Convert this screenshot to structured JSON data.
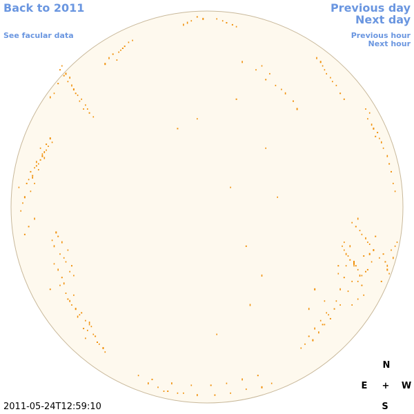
{
  "navigation": {
    "back_label": "Back to 2011",
    "facular_label": "See facular data",
    "previous_day_label": "Previous day",
    "next_day_label": "Next day",
    "previous_hour_label": "Previous hour",
    "next_hour_label": "Next hour"
  },
  "timestamp": "2011-05-24T12:59:10",
  "compass": {
    "north": "N",
    "south": "S",
    "east": "E",
    "west": "W",
    "center": "+"
  },
  "colors": {
    "link": "#6a96e0",
    "disc_fill": "#fef9ee",
    "disc_outline": "#c8b89a",
    "facula": "#f0900a"
  },
  "chart_data": {
    "type": "scatter",
    "x": [
      -0.68,
      -0.71,
      -0.66,
      -0.73,
      -0.69,
      -0.64,
      -0.75,
      -0.62,
      -0.7,
      -0.67,
      -0.74,
      -0.63,
      -0.72,
      -0.65,
      -0.78,
      -0.6,
      -0.8,
      -0.58,
      -0.76,
      -0.61,
      -0.83,
      -0.85,
      -0.81,
      -0.88,
      -0.84,
      -0.86,
      -0.82,
      -0.9,
      -0.87,
      -0.79,
      -0.89,
      -0.84,
      -0.83,
      -0.87,
      -0.85,
      -0.91,
      -0.8,
      -0.86,
      -0.88,
      -0.82,
      -0.74,
      -0.71,
      -0.76,
      -0.73,
      -0.78,
      -0.69,
      -0.75,
      -0.72,
      -0.77,
      -0.7,
      -0.79,
      -0.74,
      -0.73,
      -0.68,
      -0.8,
      -0.72,
      -0.76,
      -0.71,
      -0.75,
      -0.78,
      -0.93,
      -0.9,
      -0.95,
      -0.92,
      -0.88,
      -0.94,
      -0.91,
      -0.96,
      -0.89,
      -0.93,
      -0.65,
      -0.62,
      -0.67,
      -0.6,
      -0.69,
      -0.63,
      -0.66,
      -0.58,
      -0.64,
      -0.61,
      -0.7,
      -0.57,
      -0.55,
      -0.59,
      -0.53,
      -0.68,
      -0.62,
      -0.56,
      -0.6,
      -0.52,
      -0.48,
      -0.44,
      -0.5,
      -0.42,
      -0.46,
      -0.4,
      -0.52,
      -0.38,
      -0.45,
      -0.43,
      -0.3,
      -0.25,
      -0.2,
      -0.12,
      -0.05,
      0.04,
      0.12,
      0.2,
      0.28,
      0.33,
      -0.35,
      -0.28,
      -0.18,
      -0.08,
      0.02,
      0.1,
      0.18,
      0.26,
      -0.22,
      -0.15,
      -0.02,
      -0.08,
      0.05,
      0.1,
      -0.12,
      0.15,
      -0.05,
      0.08,
      -0.1,
      0.13,
      0.6,
      0.63,
      0.58,
      0.66,
      0.61,
      0.68,
      0.56,
      0.64,
      0.7,
      0.59,
      0.84,
      0.87,
      0.82,
      0.88,
      0.85,
      0.9,
      0.83,
      0.86,
      0.89,
      0.81,
      0.93,
      0.95,
      0.92,
      0.94,
      0.96,
      0.72,
      0.75,
      0.7,
      0.77,
      0.73,
      0.78,
      0.69,
      0.76,
      0.74,
      0.71,
      0.79,
      0.67,
      0.8,
      0.75,
      0.72,
      0.77,
      0.7,
      0.68,
      0.74,
      0.81,
      0.78,
      0.81,
      0.76,
      0.83,
      0.79,
      0.85,
      0.74,
      0.82,
      0.8,
      0.77,
      0.84,
      0.86,
      0.75,
      0.73,
      0.82,
      0.88,
      0.79,
      0.83,
      0.71,
      0.77,
      0.9,
      0.92,
      0.94,
      0.91,
      0.93,
      0.95,
      0.89,
      0.96,
      0.97,
      0.92,
      0.62,
      0.58,
      0.65,
      0.55,
      0.6,
      0.52,
      0.68,
      0.57,
      0.63,
      0.5,
      0.66,
      0.54,
      0.61,
      0.48,
      0.59,
      0.4,
      0.35,
      0.3,
      0.25,
      0.18,
      0.44,
      0.38,
      0.32,
      0.46,
      0.28,
      0.12,
      0.2,
      0.28,
      0.36,
      -0.15,
      0.3,
      0.22,
      0.15,
      0.05,
      -0.05,
      0.55,
      0.7,
      0.6,
      0.67,
      0.52
    ],
    "y": [
      0.6,
      0.64,
      0.57,
      0.67,
      0.62,
      0.55,
      0.7,
      0.52,
      0.66,
      0.58,
      0.72,
      0.5,
      0.68,
      0.54,
      0.58,
      0.48,
      0.56,
      0.46,
      0.63,
      0.5,
      0.28,
      0.24,
      0.31,
      0.2,
      0.26,
      0.22,
      0.29,
      0.18,
      0.23,
      0.33,
      0.16,
      0.27,
      0.25,
      0.21,
      0.3,
      0.14,
      0.35,
      0.19,
      0.12,
      0.32,
      -0.18,
      -0.22,
      -0.15,
      -0.26,
      -0.2,
      -0.3,
      -0.24,
      -0.28,
      -0.13,
      -0.33,
      -0.17,
      -0.36,
      -0.39,
      -0.35,
      -0.42,
      -0.44,
      -0.32,
      -0.47,
      -0.4,
      -0.29,
      0.05,
      0.08,
      -0.02,
      0.12,
      -0.06,
      0.02,
      -0.1,
      0.1,
      0.15,
      -0.14,
      -0.55,
      -0.58,
      -0.52,
      -0.6,
      -0.5,
      -0.62,
      -0.56,
      -0.65,
      -0.54,
      -0.63,
      -0.48,
      -0.66,
      -0.7,
      -0.61,
      -0.72,
      -0.45,
      -0.67,
      -0.69,
      -0.59,
      -0.74,
      0.78,
      0.8,
      0.76,
      0.82,
      0.75,
      0.84,
      0.73,
      0.85,
      0.79,
      0.81,
      -0.9,
      -0.92,
      -0.94,
      -0.95,
      -0.96,
      -0.96,
      -0.95,
      -0.93,
      -0.92,
      -0.9,
      -0.86,
      -0.88,
      -0.9,
      -0.91,
      -0.91,
      -0.9,
      -0.88,
      -0.86,
      -0.94,
      -0.95,
      0.96,
      0.95,
      0.96,
      0.94,
      0.93,
      0.92,
      0.97,
      0.95,
      0.94,
      0.93,
      0.7,
      0.66,
      0.74,
      0.62,
      0.68,
      0.58,
      0.76,
      0.64,
      0.55,
      0.72,
      0.42,
      0.38,
      0.45,
      0.35,
      0.4,
      0.3,
      0.48,
      0.36,
      0.33,
      0.5,
      0.22,
      0.12,
      0.26,
      0.18,
      0.08,
      -0.25,
      -0.28,
      -0.22,
      -0.32,
      -0.27,
      -0.35,
      -0.2,
      -0.3,
      -0.38,
      -0.24,
      -0.4,
      -0.34,
      -0.45,
      -0.29,
      -0.43,
      -0.47,
      -0.36,
      -0.42,
      -0.5,
      -0.33,
      -0.12,
      -0.16,
      -0.1,
      -0.19,
      -0.14,
      -0.22,
      -0.08,
      -0.18,
      -0.25,
      -0.06,
      -0.28,
      -0.15,
      -0.3,
      -0.2,
      -0.32,
      -0.26,
      -0.35,
      -0.24,
      -0.3,
      -0.38,
      -0.24,
      -0.3,
      -0.22,
      -0.28,
      -0.34,
      -0.26,
      -0.38,
      -0.2,
      -0.18,
      -0.32,
      -0.55,
      -0.58,
      -0.52,
      -0.62,
      -0.6,
      -0.66,
      -0.5,
      -0.64,
      -0.57,
      -0.7,
      -0.48,
      -0.68,
      -0.54,
      -0.72,
      -0.6,
      0.58,
      0.62,
      0.65,
      0.7,
      0.74,
      0.54,
      0.6,
      0.68,
      0.5,
      0.72,
      0.1,
      -0.2,
      -0.35,
      0.05,
      0.4,
      0.3,
      -0.5,
      0.55,
      -0.65,
      0.45,
      -0.42,
      -0.18,
      -0.48,
      -0.3,
      -0.52
    ]
  }
}
